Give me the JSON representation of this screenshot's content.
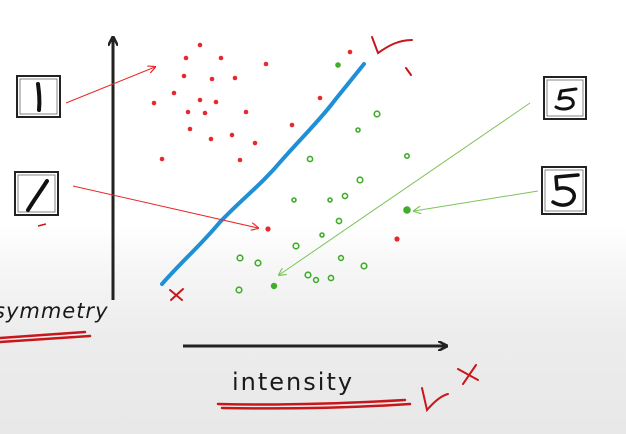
{
  "axes": {
    "y_label": "symmetry",
    "x_label": "intensity"
  },
  "thumbnails": [
    {
      "digit": "1"
    },
    {
      "digit": "1"
    },
    {
      "digit": "5"
    },
    {
      "digit": "5"
    }
  ],
  "colors": {
    "red_class": "#e8282a",
    "green_class": "#3fae2a",
    "separator": "#1f8fd6",
    "axis": "#222222",
    "annotation": "#c8171b"
  }
}
